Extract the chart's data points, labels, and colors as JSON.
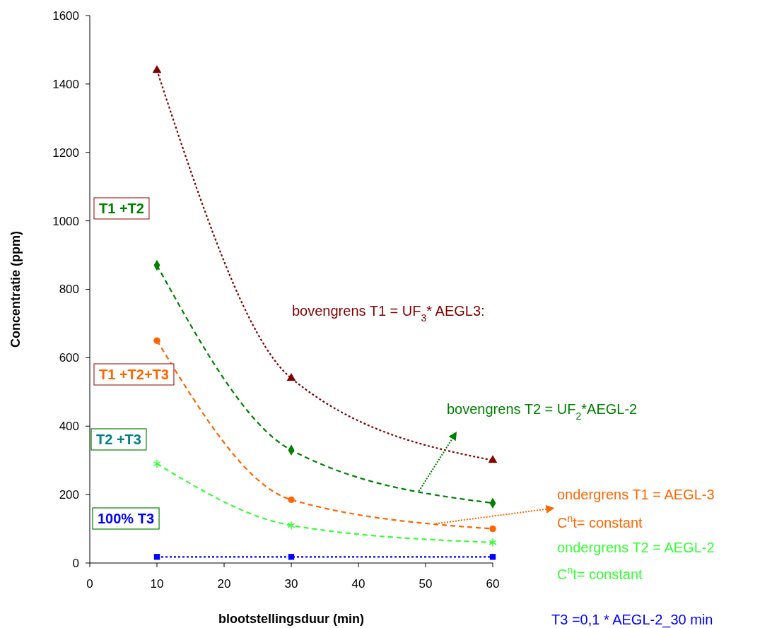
{
  "chart_data": {
    "type": "line",
    "xlabel": "blootstellingsduur (min)",
    "ylabel": "Concentratie (ppm)",
    "xlim": [
      0,
      60
    ],
    "xticks": [
      0,
      10,
      20,
      30,
      40,
      50,
      60
    ],
    "ylim": [
      0,
      1600
    ],
    "yticks": [
      0,
      200,
      400,
      600,
      800,
      1000,
      1200,
      1400,
      1600
    ],
    "grid": false,
    "x": [
      10,
      30,
      60
    ],
    "series": [
      {
        "color": "#800000",
        "values": [
          1440,
          540,
          300
        ],
        "marker": "triangle",
        "line_style": "dotted"
      },
      {
        "color": "#008000",
        "values": [
          870,
          330,
          175
        ],
        "marker": "diamond",
        "line_style": "dashed"
      },
      {
        "color": "#ff6600",
        "values": [
          650,
          185,
          100
        ],
        "marker": "circle",
        "line_style": "dashed"
      },
      {
        "color": "#33ff33",
        "values": [
          290,
          110,
          60
        ],
        "marker": "cross",
        "line_style": "dashed"
      },
      {
        "color": "#0000ff",
        "values": [
          18,
          18,
          18
        ],
        "marker": "square",
        "line_style": "dotted"
      }
    ],
    "annotations": [
      "T1 +T2",
      "T1 +T2+T3",
      "T2 +T3",
      "100% T3",
      "bovengrens T1 = UF$_{3}$* AEGL3:",
      "bovengrens T2 = UF$_{2}$*AEGL-2",
      "ondergrens T1 = AEGL-3",
      "C$^{n}$t= constant",
      "ondergrens T2 = AEGL-2",
      "C$^{n}$t= constant",
      "T3 =0,1 * AEGL-2_30 min"
    ]
  }
}
